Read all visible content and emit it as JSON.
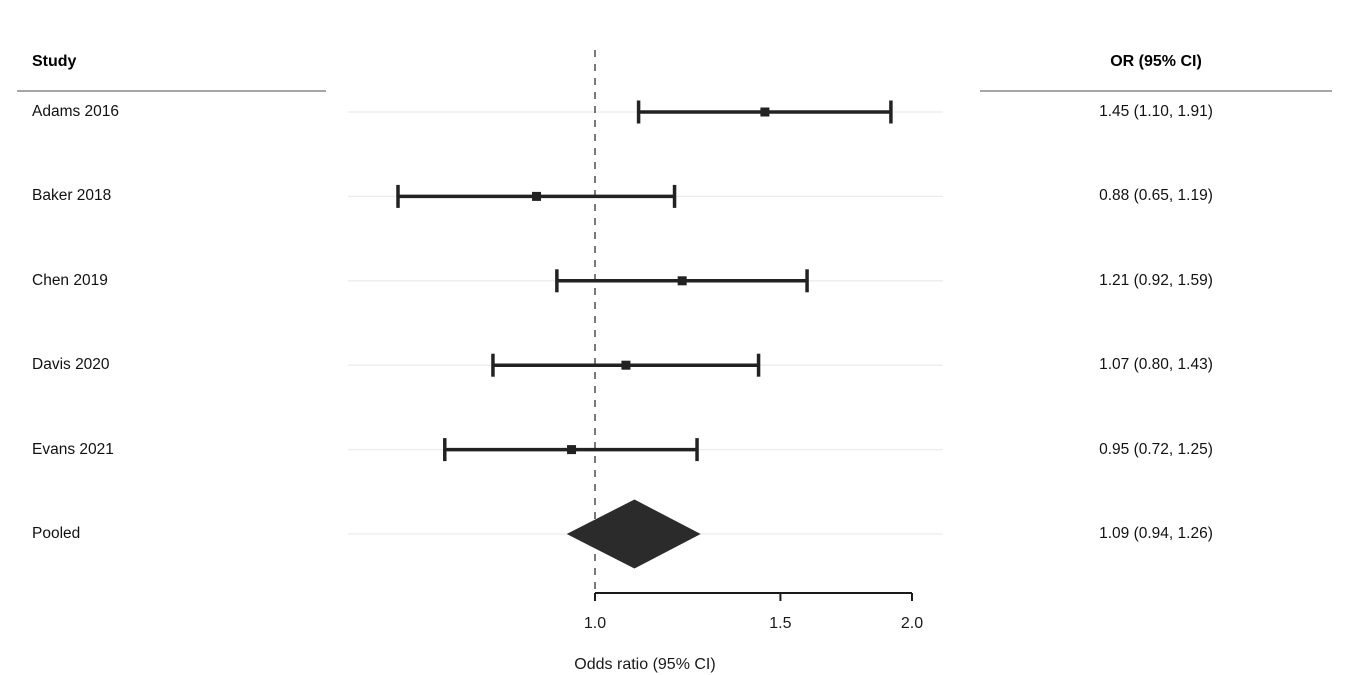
{
  "header": {
    "study_header": "Study",
    "or_header": "OR (95% CI)"
  },
  "chart_data": {
    "type": "forest",
    "scale": "log",
    "title": "",
    "xlabel": "Odds ratio (95% CI)",
    "x_ticks": [
      1.0,
      1.5,
      2.0
    ],
    "x_tick_labels": [
      "1.0",
      "1.5",
      "2.0"
    ],
    "x_domain": [
      0.58,
      2.15
    ],
    "reference_line": 1.0,
    "grid": "row-lines",
    "legend": "none",
    "studies": [
      {
        "name": "Adams 2016",
        "or": 1.45,
        "ci_low": 1.1,
        "ci_high": 1.91,
        "label": "1.45 (1.10, 1.91)"
      },
      {
        "name": "Baker 2018",
        "or": 0.88,
        "ci_low": 0.65,
        "ci_high": 1.19,
        "label": "0.88 (0.65, 1.19)"
      },
      {
        "name": "Chen 2019",
        "or": 1.21,
        "ci_low": 0.92,
        "ci_high": 1.59,
        "label": "1.21 (0.92, 1.59)"
      },
      {
        "name": "Davis 2020",
        "or": 1.07,
        "ci_low": 0.8,
        "ci_high": 1.43,
        "label": "1.07 (0.80, 1.43)"
      },
      {
        "name": "Evans 2021",
        "or": 0.95,
        "ci_low": 0.72,
        "ci_high": 1.25,
        "label": "0.95 (0.72, 1.25)"
      }
    ],
    "pooled": {
      "name": "Pooled",
      "or": 1.09,
      "ci_low": 0.94,
      "ci_high": 1.26,
      "label": "1.09 (0.94, 1.26)"
    }
  },
  "colors": {
    "marker": "#222222",
    "diamond": "#2b2b2b",
    "row_line": "#ececec",
    "header_rule": "#a6a6a6",
    "reference_line": "#4d4d4d",
    "axis": "#1a1a1a",
    "text": "#111111"
  }
}
